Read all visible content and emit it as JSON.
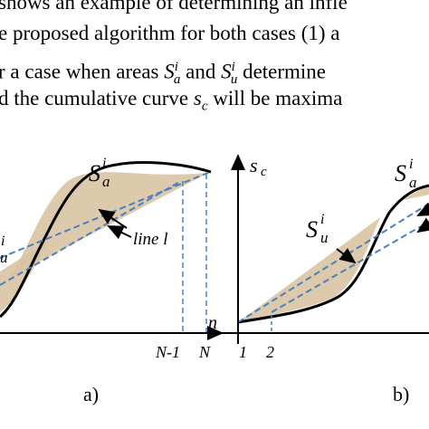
{
  "text": {
    "line1": "shows an example of determining an infle",
    "line2": "e proposed algorithm for both cases (1) a",
    "line3_a": "r a case when areas ",
    "line3_s1": "S",
    "line3_s1_sup": "i",
    "line3_s1_sub": "a",
    "line3_and": " and ",
    "line3_s2": "S",
    "line3_s2_sup": "i",
    "line3_s2_sub": "u",
    "line3_b": " determine",
    "line4_a": "d the cumulative curve ",
    "line4_s": "s",
    "line4_s_sub": "c",
    "line4_b": " will be maxima"
  },
  "figure_a": {
    "label_Sa": "S",
    "label_Sa_sup": "i",
    "label_Sa_sub": "a",
    "label_Su_sup": "i",
    "label_Su_sub": "u",
    "line_label": "line l",
    "axis_n": "n",
    "tick_N1": "N-1",
    "tick_N": "N",
    "caption": "a)"
  },
  "figure_b": {
    "axis_label": "s",
    "axis_label_sub": "c",
    "label_Su": "S",
    "label_Su_sup": "i",
    "label_Su_sub": "u",
    "label_Sa": "S",
    "label_Sa_sup": "i",
    "label_Sa_sub": "a",
    "tick_1": "1",
    "tick_2": "2",
    "caption": "b)"
  },
  "colors": {
    "dashed_line": "#4a7fc0",
    "fill_area": "#d9c3a3",
    "curve": "#000000"
  }
}
